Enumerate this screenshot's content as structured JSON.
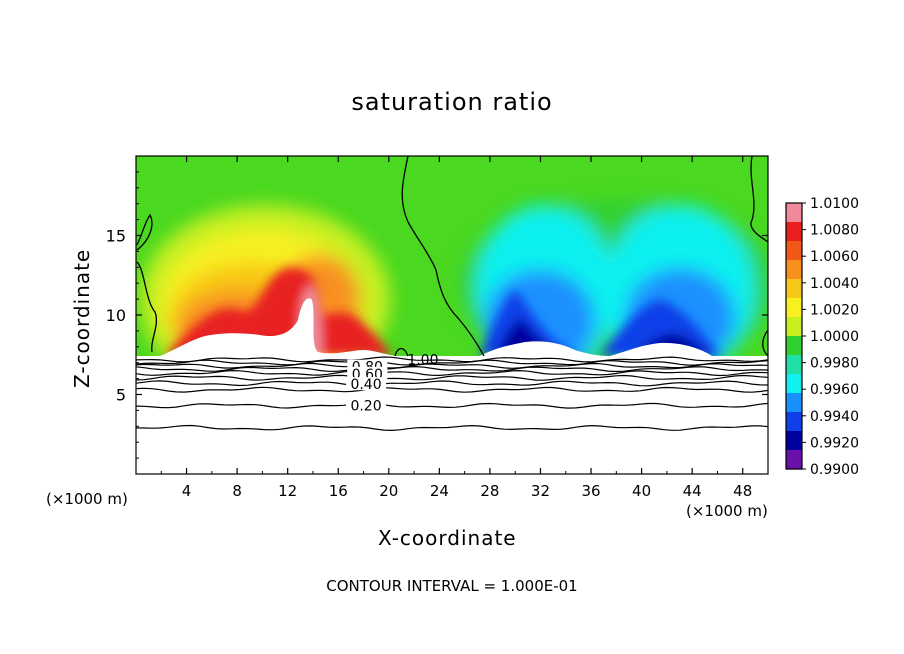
{
  "chart_data": {
    "type": "heatmap",
    "title": "saturation ratio",
    "xlabel": "X-coordinate",
    "ylabel": "Z-coordinate",
    "x_unit_left": "(×1000 m)",
    "x_unit_right": "(×1000 m)",
    "footer": "CONTOUR INTERVAL = 1.000E-01",
    "xlim": [
      0,
      50
    ],
    "ylim": [
      0,
      20
    ],
    "x_ticks": [
      "4",
      "8",
      "12",
      "16",
      "20",
      "24",
      "28",
      "32",
      "36",
      "40",
      "44",
      "48"
    ],
    "y_ticks": [
      "5",
      "10",
      "15"
    ],
    "colorbar": {
      "range": [
        0.99,
        1.01
      ],
      "ticks": [
        "1.0100",
        "1.0080",
        "1.0060",
        "1.0040",
        "1.0020",
        "1.0000",
        "0.9980",
        "0.9960",
        "0.9940",
        "0.9920",
        "0.9900"
      ],
      "colors": [
        "#f08a9a",
        "#e82020",
        "#f05818",
        "#f89020",
        "#f8c818",
        "#f8f020",
        "#c8f020",
        "#30d030",
        "#20e0a8",
        "#10f0f0",
        "#1a90ff",
        "#1040e8",
        "#0000a0",
        "#6a10a8"
      ]
    },
    "contour_labels": [
      "1.00",
      "0.80",
      "0.60",
      "0.40",
      "0.20"
    ],
    "contour_label_values": [
      1.0,
      0.8,
      0.6,
      0.4,
      0.2
    ]
  }
}
